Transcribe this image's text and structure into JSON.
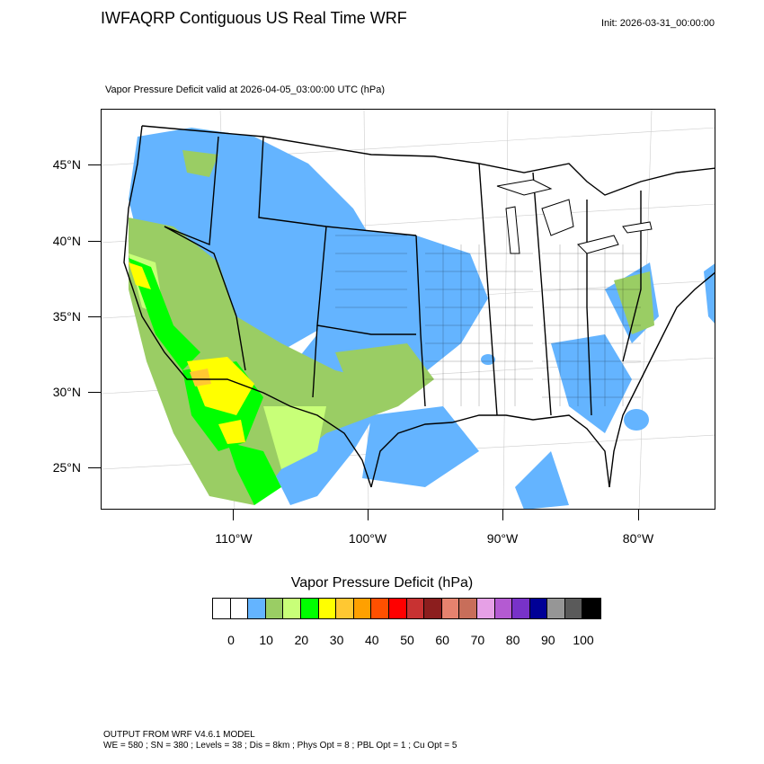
{
  "header": {
    "title": "IWFAQRP Contiguous US Real Time WRF",
    "init": "Init: 2026-03-31_00:00:00"
  },
  "plot": {
    "subtitle": "Vapor Pressure Deficit valid at 2026-04-05_03:00:00 UTC   (hPa)",
    "lat_labels": [
      "45°N",
      "40°N",
      "35°N",
      "30°N",
      "25°N"
    ],
    "lon_labels": [
      "110°W",
      "100°W",
      "90°W",
      "80°W"
    ]
  },
  "colorbar": {
    "title": "Vapor Pressure Deficit  (hPa)",
    "labels": [
      "0",
      "10",
      "20",
      "30",
      "40",
      "50",
      "60",
      "70",
      "80",
      "90",
      "100"
    ],
    "colors": [
      "#ffffff",
      "#ffffff",
      "#64b4ff",
      "#9acd64",
      "#c8ff78",
      "#00ff00",
      "#ffff00",
      "#ffc832",
      "#ffa000",
      "#ff5000",
      "#ff0000",
      "#c83232",
      "#8c1e1e",
      "#e6826e",
      "#c86e5a",
      "#e6a0e6",
      "#b45ad2",
      "#7832c8",
      "#000096",
      "#969696",
      "#5a5a5a",
      "#000000"
    ]
  },
  "footer": {
    "line1": "OUTPUT FROM WRF V4.6.1 MODEL",
    "line2": "WE = 580 ; SN = 380 ; Levels = 38 ; Dis = 8km ; Phys Opt = 8 ; PBL Opt = 1 ; Cu Opt = 5"
  }
}
